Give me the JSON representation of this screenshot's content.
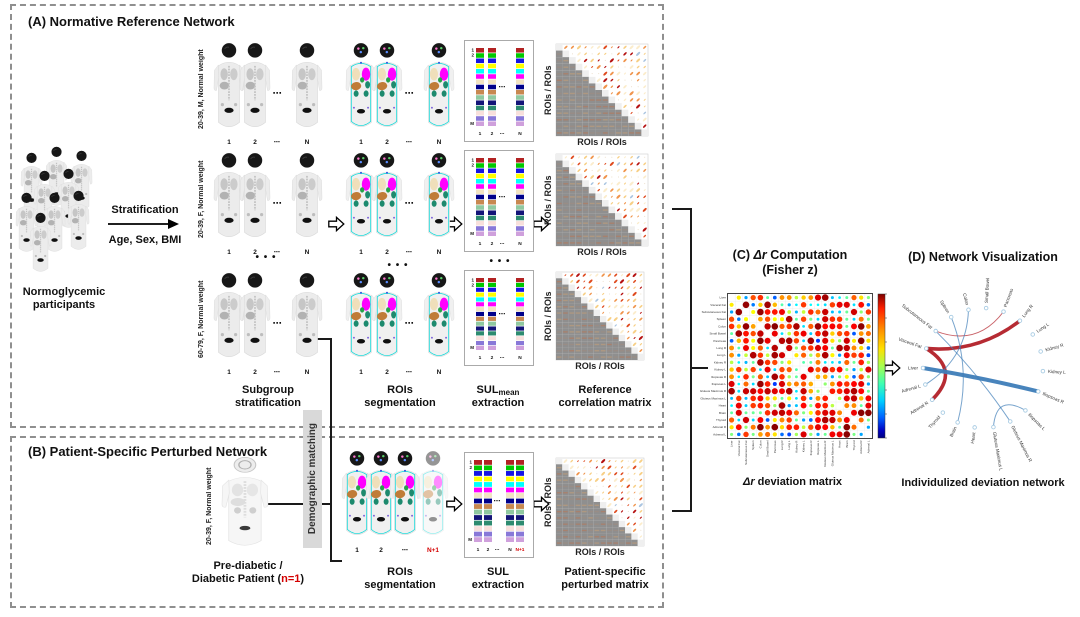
{
  "panelA": {
    "title": "(A) Normative Reference Network",
    "crowd_label": [
      "Normoglycemic",
      "participants"
    ],
    "strat_top": "Stratification",
    "strat_bottom": "Age, Sex, BMI",
    "rows": [
      {
        "group_label": "20-39, M, Normal weight"
      },
      {
        "group_label": "20-39, F, Normal weight"
      },
      {
        "group_label": "60-79, F, Normal weight"
      }
    ],
    "seq_labels": [
      "1",
      "2",
      "⋯",
      "N"
    ],
    "sul_row_top": [
      "1",
      "2"
    ],
    "sul_row_bottom": "M",
    "sul_col_labels": [
      "1",
      "2",
      "⋯",
      "N"
    ],
    "captions": {
      "subgroup": [
        "Subgroup",
        "stratification"
      ],
      "rois": [
        "ROIs",
        "segmentation"
      ],
      "sul_main": "SUL",
      "sul_sub": "mean",
      "sul_line2": "extraction",
      "ref": [
        "Reference",
        "correlation matrix"
      ]
    },
    "matrix_axis_y": "ROIs / ROIs",
    "matrix_axis_x": "ROIs / ROIs"
  },
  "panelB": {
    "title": "(B) Patient-Specific Perturbed Network",
    "patient_group_label": "20-39, F, Normal weight",
    "patient_caption_line1": "Pre-diabetic /",
    "patient_caption_line2_pre": "Diabetic Patient (",
    "patient_caption_line2_red": "n=1",
    "patient_caption_line2_post": ")",
    "seq_labels": [
      "1",
      "2",
      "⋯"
    ],
    "seq_last": "N+1",
    "sul_row_top": [
      "1",
      "2"
    ],
    "sul_row_bottom": "M",
    "sul_col_labels": [
      "1",
      "2",
      "⋯",
      "N"
    ],
    "sul_col_last": "N+1",
    "captions": {
      "rois": [
        "ROIs",
        "segmentation"
      ],
      "sul": [
        "SUL",
        "extraction"
      ],
      "matrix": [
        "Patient-specific",
        "perturbed matrix"
      ]
    },
    "matrix_axis_y": "ROIs / ROIs",
    "matrix_axis_x": "ROIs / ROIs"
  },
  "demographic_matching": "Demographic matching",
  "panelC": {
    "title_pre": "(C) ",
    "title_dr": "Δr",
    "title_post": " Computation",
    "title_line2": "(Fisher z)",
    "caption_dr": "Δr",
    "caption_rest": " deviation matrix",
    "roi_labels": [
      "Liver",
      "Visceral Fat",
      "Subcutaneous Fat",
      "Spleen",
      "Colon",
      "Small Bowel",
      "Pancreas",
      "Lung R",
      "Lung L",
      "Kidney R",
      "Kidney L",
      "Iliopsoas R",
      "Iliopsoas L",
      "Gluteus Maximus R",
      "Gluteus Maximus L",
      "Heart",
      "Brain",
      "Thyroid",
      "Adrenal R",
      "Adrenal L"
    ]
  },
  "panelD": {
    "title": "(D) Network Visualization",
    "caption": "Individulized deviation network",
    "nodes": [
      {
        "name": "Liver",
        "angle": 180
      },
      {
        "name": "Visceral Fat",
        "angle": 161
      },
      {
        "name": "Subcutaneous Fat",
        "angle": 142
      },
      {
        "name": "Spleen",
        "angle": 122
      },
      {
        "name": "Colon",
        "angle": 104
      },
      {
        "name": "Small Bowel",
        "angle": 87
      },
      {
        "name": "Pancreas",
        "angle": 70
      },
      {
        "name": "Lung R",
        "angle": 52
      },
      {
        "name": "Lung L",
        "angle": 34
      },
      {
        "name": "Kidney R",
        "angle": 16
      },
      {
        "name": "Kidney L",
        "angle": 357
      },
      {
        "name": "Iliopsoas R",
        "angle": 337
      },
      {
        "name": "Iliopsoas L",
        "angle": 315
      },
      {
        "name": "Gluteus Maximus R",
        "angle": 297
      },
      {
        "name": "Gluteus Maximus L",
        "angle": 280
      },
      {
        "name": "Heart",
        "angle": 262
      },
      {
        "name": "Brain",
        "angle": 245
      },
      {
        "name": "Thyroid",
        "angle": 228
      },
      {
        "name": "Adrenal R",
        "angle": 212
      },
      {
        "name": "Adrenal L",
        "angle": 196
      }
    ],
    "edges": [
      {
        "a": "Visceral Fat",
        "b": "Lung R",
        "color": "red",
        "width": 3.6,
        "k": 0.45
      },
      {
        "a": "Visceral Fat",
        "b": "Adrenal R",
        "color": "red",
        "width": 3.6,
        "k": 0.4
      },
      {
        "a": "Subcutaneous Fat",
        "b": "Pancreas",
        "color": "red",
        "width": 1,
        "k": 0.45
      },
      {
        "a": "Liver",
        "b": "Iliopsoas R",
        "color": "blue",
        "width": 4,
        "k": 0.8
      },
      {
        "a": "Spleen",
        "b": "Brain",
        "color": "blue",
        "width": 1,
        "k": 0.4
      },
      {
        "a": "Colon",
        "b": "Adrenal L",
        "color": "blue",
        "width": 1,
        "k": 0.45
      },
      {
        "a": "Subcutaneous Fat",
        "b": "Gluteus Maximus R",
        "color": "blue",
        "width": 1,
        "k": 0.55
      },
      {
        "a": "Iliopsoas L",
        "b": "Gluteus Maximus L",
        "color": "blue",
        "width": 1,
        "k": 0.5
      }
    ]
  },
  "misc": {
    "dots": "• • •"
  },
  "colors": {
    "sul_palette": [
      "#b22222",
      "#00c800",
      "#1414e6",
      "#ffff00",
      "#00ffff",
      "#ff00ff",
      "#f2e4c2",
      "#00008b",
      "#c88850",
      "#90c8a0",
      "#141478",
      "#2e8b70",
      "#f8e0dc",
      "#8878d8",
      "#cfa0dc"
    ],
    "edge_red": "#b22028",
    "edge_blue": "#3e7db8",
    "accent_red": "#d40000",
    "matching_box": "#d9d9d9"
  }
}
